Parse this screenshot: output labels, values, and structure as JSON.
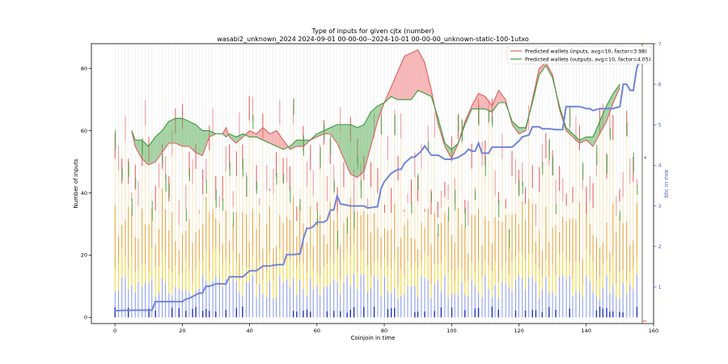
{
  "chart_data": {
    "type": "line",
    "title": "Type of inputs for given cjtx (number)",
    "subtitle": "wasabi2_unknown_2024 2024-09-01 00-00-00--2024-10-01 00-00-00_unknown-static-100-1utxo",
    "xlabel": "Coinjoin in time",
    "ylabel": "Number of inputs",
    "y2label": "btc in mix",
    "xlim": [
      -7,
      160
    ],
    "ylim": [
      -2,
      88
    ],
    "y2lim": [
      0.1,
      7
    ],
    "xticks": [
      0,
      20,
      40,
      60,
      80,
      100,
      120,
      140,
      160
    ],
    "yticks": [
      0,
      20,
      40,
      60,
      80
    ],
    "y2ticks": [
      1,
      2,
      3,
      4,
      5,
      6,
      7
    ],
    "grid": "vertical lines at every coinjoin",
    "legend_position": "top-right",
    "legend": [
      "Predicted wallets (inputs, avg=10, factor=3.98)",
      "Predicted wallets (outputs, avg=10, factor=4.05)"
    ],
    "colors": {
      "inputs_line": "#e06060",
      "inputs_fill": "#f08080",
      "outputs_line": "#3a9a3a",
      "outputs_fill": "#60b060",
      "btc_line": "#6f86d8",
      "btc_axis": "#4a5fd0",
      "stack_blue": "#8f9ff0",
      "stack_yellow": "#f2d53c",
      "stack_orange": "#e8a43a",
      "stack_pale": "#f7e7c5",
      "stack_pink": "#ee9a9a",
      "stack_red": "#e86060",
      "stack_green": "#4caf50",
      "marker_blue": "#2233bb",
      "marker_red": "#ff4400"
    },
    "series": [
      {
        "name": "Predicted wallets (inputs, avg=10, factor=3.98)",
        "x": [
          5,
          6,
          8,
          10,
          12,
          14,
          16,
          18,
          20,
          22,
          24,
          26,
          28,
          30,
          32,
          33,
          34,
          36,
          38,
          40,
          42,
          44,
          46,
          48,
          50,
          52,
          54,
          56,
          58,
          60,
          62,
          64,
          66,
          68,
          70,
          72,
          74,
          76,
          78,
          80,
          82,
          84,
          86,
          88,
          90,
          92,
          94,
          96,
          98,
          100,
          102,
          104,
          106,
          108,
          110,
          112,
          114,
          116,
          118,
          120,
          122,
          124,
          126,
          128,
          130,
          132,
          134,
          136,
          138,
          140,
          142,
          144,
          146,
          148,
          150
        ],
        "values": [
          60,
          55,
          51,
          49,
          50,
          53,
          56,
          56,
          55,
          55,
          53,
          52,
          58,
          59,
          59,
          61,
          58,
          56,
          58,
          60,
          59,
          61,
          59,
          60,
          57,
          54,
          55,
          55,
          57,
          58,
          59,
          59,
          56,
          51,
          46,
          45,
          47,
          55,
          63,
          69,
          74,
          79,
          84,
          85,
          86,
          82,
          73,
          62,
          55,
          51,
          56,
          63,
          68,
          72,
          71,
          68,
          73,
          70,
          62,
          59,
          60,
          70,
          80,
          82,
          78,
          67,
          60,
          58,
          56,
          57,
          55,
          59,
          63,
          69,
          74
        ]
      },
      {
        "name": "Predicted wallets (outputs, avg=10, factor=4.05)",
        "x": [
          5,
          6,
          8,
          10,
          12,
          14,
          16,
          18,
          20,
          22,
          24,
          26,
          28,
          30,
          32,
          33,
          34,
          36,
          38,
          40,
          42,
          44,
          46,
          48,
          50,
          52,
          54,
          56,
          58,
          60,
          62,
          64,
          66,
          68,
          70,
          72,
          74,
          76,
          78,
          80,
          82,
          84,
          86,
          88,
          90,
          92,
          94,
          96,
          98,
          100,
          102,
          104,
          106,
          108,
          110,
          112,
          114,
          116,
          118,
          120,
          122,
          124,
          126,
          128,
          130,
          132,
          134,
          136,
          138,
          140,
          142,
          144,
          146,
          148,
          150
        ],
        "values": [
          60,
          57,
          57,
          55,
          58,
          60,
          63,
          64,
          64,
          63,
          62,
          60,
          60,
          59,
          59,
          58,
          59,
          58,
          59,
          58,
          58,
          57,
          56,
          55,
          54,
          55,
          57,
          57,
          57,
          59,
          60,
          61,
          62,
          62,
          62,
          61,
          62,
          66,
          68,
          69,
          71,
          70,
          70,
          70,
          73,
          72,
          71,
          64,
          56,
          54,
          56,
          62,
          67,
          67,
          67,
          66,
          69,
          69,
          63,
          61,
          61,
          69,
          78,
          81,
          77,
          68,
          61,
          59,
          57,
          58,
          58,
          63,
          68,
          72,
          75
        ]
      },
      {
        "name": "btc in mix",
        "x": [
          0,
          1,
          5,
          11,
          12,
          18,
          20,
          21,
          22,
          25,
          26,
          27,
          28,
          30,
          33,
          34,
          36,
          38,
          40,
          42,
          44,
          46,
          48,
          50,
          51,
          53,
          55,
          56,
          57,
          58,
          59,
          60,
          62,
          63,
          64,
          65,
          66,
          67,
          70,
          72,
          74,
          75,
          78,
          79,
          80,
          82,
          84,
          85,
          86,
          88,
          89,
          91,
          92,
          94,
          96,
          98,
          100,
          102,
          103,
          104,
          105,
          106,
          107,
          108,
          109,
          111,
          112,
          113,
          114,
          116,
          118,
          120,
          121,
          123,
          124,
          125,
          126,
          127,
          129,
          131,
          133,
          134,
          136,
          138,
          140,
          141,
          142,
          144,
          146,
          148,
          150,
          151,
          152,
          153,
          154,
          155,
          156
        ],
        "values": [
          0.42,
          0.42,
          0.43,
          0.43,
          0.64,
          0.64,
          0.64,
          0.7,
          0.72,
          0.85,
          0.85,
          1.02,
          1.02,
          1.08,
          1.08,
          1.25,
          1.25,
          1.25,
          1.4,
          1.4,
          1.52,
          1.52,
          1.55,
          1.55,
          1.8,
          1.8,
          1.82,
          2.2,
          2.45,
          2.45,
          2.5,
          2.6,
          2.6,
          2.65,
          2.9,
          2.9,
          3.25,
          3.05,
          3.0,
          3.0,
          3.0,
          2.95,
          2.98,
          3.42,
          3.6,
          3.8,
          3.9,
          3.9,
          4.05,
          4.2,
          4.2,
          4.35,
          4.48,
          4.25,
          4.25,
          4.15,
          4.15,
          4.2,
          4.25,
          4.3,
          4.4,
          4.35,
          4.35,
          4.55,
          4.3,
          4.3,
          4.45,
          4.45,
          4.45,
          4.45,
          4.45,
          4.6,
          4.7,
          4.75,
          4.95,
          4.95,
          4.95,
          4.9,
          4.9,
          4.88,
          4.88,
          5.45,
          5.45,
          5.45,
          5.4,
          5.4,
          5.35,
          5.4,
          5.4,
          5.4,
          5.45,
          6.0,
          6.0,
          5.85,
          5.85,
          6.4,
          6.6
        ]
      }
    ],
    "stacks": {
      "description": "per-coinjoin stacked vertical bars of input types (blue, yellow, orange, pale, pink/red, green)",
      "x_range": [
        0,
        155
      ],
      "typical_total": 55
    }
  }
}
